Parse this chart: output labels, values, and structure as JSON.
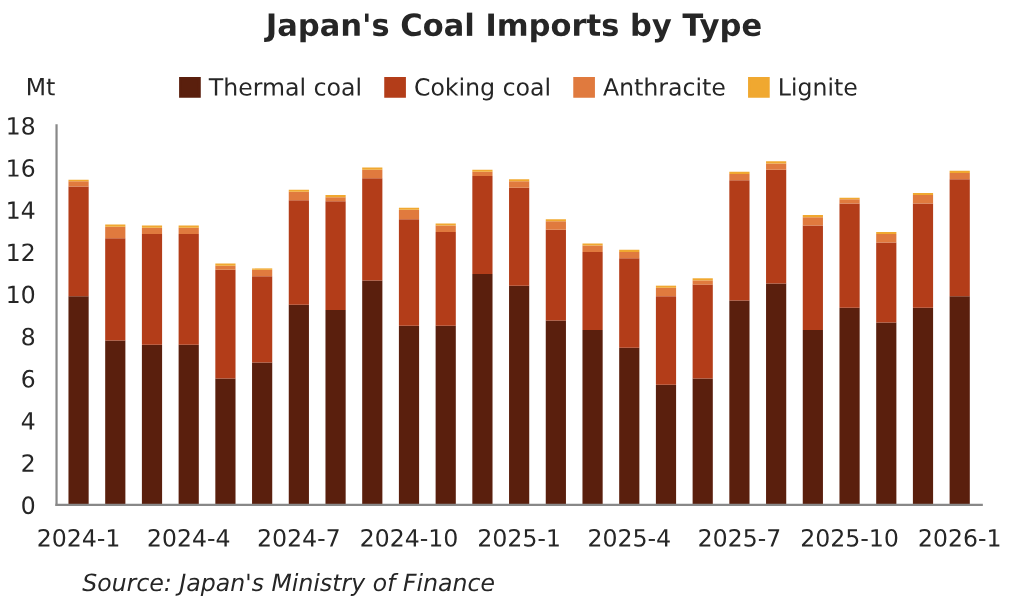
{
  "chart_data": {
    "type": "bar",
    "title": "Japan's Coal Imports by Type",
    "ylabel": "Mt",
    "stacked": true,
    "legend": "top",
    "grid": false,
    "categories": [
      "2024-1",
      null,
      null,
      "2024-4",
      null,
      null,
      "2024-7",
      null,
      null,
      "2024-10",
      null,
      null,
      "2025-1",
      null,
      null,
      "2025-4",
      null,
      null,
      "2025-7",
      null,
      null,
      "2025-10",
      null,
      null,
      "2026-1"
    ],
    "series": [
      {
        "name": "Thermal coal",
        "color": "#5a1f0d",
        "values": [
          9.9,
          7.8,
          7.6,
          7.6,
          6.0,
          6.75,
          9.5,
          9.25,
          10.65,
          8.5,
          8.5,
          10.95,
          10.4,
          8.75,
          8.3,
          7.45,
          5.7,
          6.0,
          9.7,
          10.5,
          8.3,
          9.35,
          8.65,
          9.35,
          9.9
        ]
      },
      {
        "name": "Coking coal",
        "color": "#b33d19",
        "values": [
          5.2,
          4.85,
          5.25,
          5.25,
          5.15,
          4.1,
          4.95,
          5.15,
          4.85,
          5.05,
          4.45,
          4.65,
          4.65,
          4.3,
          3.7,
          4.25,
          4.2,
          4.45,
          5.7,
          5.4,
          4.95,
          4.95,
          3.8,
          4.95,
          5.55
        ]
      },
      {
        "name": "Anthracite",
        "color": "#e07a3e",
        "values": [
          0.25,
          0.55,
          0.3,
          0.3,
          0.2,
          0.3,
          0.4,
          0.2,
          0.4,
          0.45,
          0.3,
          0.2,
          0.3,
          0.4,
          0.3,
          0.3,
          0.4,
          0.2,
          0.3,
          0.3,
          0.4,
          0.2,
          0.4,
          0.4,
          0.3
        ]
      },
      {
        "name": "Lignite",
        "color": "#f0a830",
        "values": [
          0.07,
          0.1,
          0.1,
          0.1,
          0.1,
          0.07,
          0.1,
          0.1,
          0.1,
          0.1,
          0.1,
          0.1,
          0.1,
          0.1,
          0.1,
          0.1,
          0.1,
          0.1,
          0.1,
          0.1,
          0.1,
          0.07,
          0.1,
          0.1,
          0.1
        ]
      }
    ],
    "ylim": [
      0,
      18
    ],
    "yticks": [
      0,
      2,
      4,
      6,
      8,
      10,
      12,
      14,
      16,
      18
    ],
    "annotations": [
      "Source: Japan's Ministry of Finance"
    ]
  }
}
